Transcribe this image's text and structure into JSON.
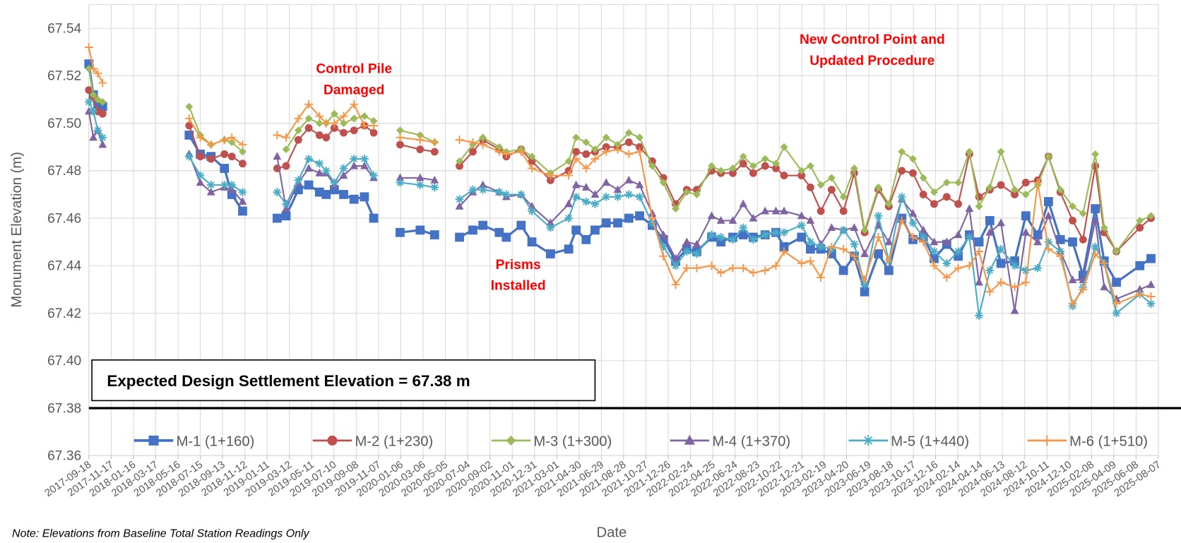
{
  "chart_data": {
    "type": "line",
    "y_label": "Monument Elevation (m)",
    "x_label": "Date",
    "note": "Note: Elevations from Baseline Total Station Readings Only",
    "reference_line": 67.38,
    "reference_label": "Expected Design Settlement Elevation = 67.38 m",
    "annotations": [
      [
        "Control Pile",
        "Damaged"
      ],
      [
        "Prisms",
        "Installed"
      ],
      [
        "New Control Point and",
        "Updated Procedure"
      ]
    ],
    "grid": true,
    "legend": "bottom",
    "ylim": [
      67.36,
      67.55
    ],
    "yticks": [
      67.36,
      67.38,
      {
        "value": 67.4,
        "label": "67.40"
      },
      67.42,
      67.44,
      67.46,
      67.48,
      {
        "value": 67.5,
        "label": "67.50"
      },
      67.52,
      67.54
    ],
    "xlim": [
      "2017-09-18",
      "2025-08-07"
    ],
    "xticks": [
      "2017-09-18",
      "2017-11-17",
      "2018-01-16",
      "2018-03-17",
      "2018-05-16",
      "2018-07-15",
      "2018-09-13",
      "2018-11-12",
      "2019-01-11",
      "2019-03-12",
      "2019-05-11",
      "2019-07-10",
      "2019-09-08",
      "2019-11-07",
      "2020-01-06",
      "2020-03-06",
      "2020-05-05",
      "2020-07-04",
      "2020-09-02",
      "2020-11-01",
      "2020-12-31",
      "2021-03-01",
      "2021-04-30",
      "2021-06-29",
      "2021-08-28",
      "2021-10-27",
      "2021-12-26",
      "2022-02-24",
      "2022-04-25",
      "2022-06-24",
      "2022-08-23",
      "2022-10-22",
      "2022-12-21",
      "2023-02-19",
      "2023-04-20",
      "2023-06-19",
      "2023-08-18",
      "2023-10-17",
      "2023-12-16",
      "2024-02-14",
      "2024-04-14",
      "2024-06-13",
      "2024-08-12",
      "2024-10-11",
      "2024-12-10",
      "2025-02-08",
      "2025-04-09",
      "2025-06-08",
      "2025-08-07"
    ],
    "x": [
      "2017-09-18",
      "2017-09-30",
      "2017-10-12",
      "2017-10-25",
      "2018-06-15",
      "2018-07-15",
      "2018-08-13",
      "2018-09-18",
      "2018-10-08",
      "2018-11-06",
      "2019-02-07",
      "2019-03-03",
      "2019-04-05",
      "2019-05-03",
      "2019-06-01",
      "2019-06-19",
      "2019-07-11",
      "2019-08-05",
      "2019-09-02",
      "2019-09-30",
      "2019-10-25",
      "2020-01-04",
      "2020-02-27",
      "2020-04-06",
      "2020-06-12",
      "2020-07-18",
      "2020-08-14",
      "2020-09-27",
      "2020-10-16",
      "2020-11-25",
      "2020-12-24",
      "2021-02-12",
      "2021-04-02",
      "2021-04-22",
      "2021-05-19",
      "2021-06-12",
      "2021-07-12",
      "2021-08-12",
      "2021-09-11",
      "2021-10-10",
      "2021-11-13",
      "2021-12-13",
      "2022-01-15",
      "2022-02-14",
      "2022-03-13",
      "2022-04-22",
      "2022-05-17",
      "2022-06-18",
      "2022-07-16",
      "2022-08-12",
      "2022-09-13",
      "2022-10-12",
      "2022-11-03",
      "2022-12-20",
      "2023-01-13",
      "2023-02-10",
      "2023-03-11",
      "2023-04-12",
      "2023-05-11",
      "2023-06-08",
      "2023-07-15",
      "2023-08-12",
      "2023-09-16",
      "2023-10-16",
      "2023-11-13",
      "2023-12-12",
      "2024-01-15",
      "2024-02-15",
      "2024-03-16",
      "2024-04-11",
      "2024-05-10",
      "2024-06-09",
      "2024-07-16",
      "2024-08-15",
      "2024-09-16",
      "2024-10-15",
      "2024-11-16",
      "2024-12-19",
      "2025-01-16",
      "2025-02-18",
      "2025-03-14",
      "2025-04-16",
      "2025-06-18",
      "2025-07-18"
    ],
    "series": [
      {
        "name": "M-1 (1+160)",
        "color": "#4472c4",
        "marker": "square",
        "values": [
          67.525,
          67.512,
          67.508,
          67.507,
          67.495,
          67.487,
          67.486,
          67.481,
          67.47,
          67.463,
          67.46,
          67.461,
          67.472,
          67.474,
          67.471,
          67.47,
          67.472,
          67.47,
          67.468,
          67.469,
          67.46,
          67.454,
          67.455,
          67.453,
          67.452,
          67.455,
          67.457,
          67.454,
          67.452,
          67.457,
          67.45,
          67.445,
          67.447,
          67.455,
          67.451,
          67.455,
          67.458,
          67.458,
          67.46,
          67.461,
          67.457,
          67.451,
          67.442,
          67.447,
          67.446,
          67.452,
          67.45,
          67.452,
          67.453,
          67.452,
          67.453,
          67.454,
          67.448,
          67.452,
          67.447,
          67.447,
          67.445,
          67.438,
          67.444,
          67.429,
          67.445,
          67.438,
          67.46,
          67.451,
          67.452,
          67.443,
          67.449,
          67.444,
          67.453,
          67.45,
          67.459,
          67.441,
          67.442,
          67.461,
          67.453,
          67.467,
          67.451,
          67.45,
          67.436,
          67.464,
          67.442,
          67.433,
          67.44,
          67.443
        ]
      },
      {
        "name": "M-2 (1+230)",
        "color": "#c0504d",
        "marker": "circle",
        "values": [
          67.514,
          67.511,
          67.505,
          67.504,
          67.499,
          67.486,
          67.485,
          67.487,
          67.486,
          67.483,
          67.481,
          67.482,
          67.493,
          67.498,
          67.495,
          67.494,
          67.498,
          67.496,
          67.497,
          67.499,
          67.496,
          67.491,
          67.489,
          67.488,
          67.482,
          67.488,
          67.493,
          67.489,
          67.486,
          67.489,
          67.484,
          67.476,
          67.48,
          67.488,
          67.487,
          67.488,
          67.49,
          67.49,
          67.492,
          67.49,
          67.484,
          67.477,
          67.466,
          67.472,
          67.472,
          67.48,
          67.479,
          67.479,
          67.483,
          67.479,
          67.482,
          67.481,
          67.478,
          67.478,
          67.473,
          67.463,
          67.472,
          67.463,
          67.479,
          67.454,
          67.472,
          67.465,
          67.48,
          67.479,
          67.47,
          67.466,
          67.469,
          67.466,
          67.487,
          67.469,
          67.472,
          67.474,
          67.47,
          67.475,
          67.476,
          67.486,
          67.471,
          67.459,
          67.451,
          67.482,
          67.454,
          67.446,
          67.456,
          67.46
        ]
      },
      {
        "name": "M-3 (1+300)",
        "color": "#9bbb59",
        "marker": "diamond",
        "values": [
          67.523,
          67.512,
          67.51,
          67.509,
          67.507,
          67.495,
          67.491,
          67.493,
          67.492,
          67.488,
          null,
          67.489,
          67.497,
          67.502,
          67.5,
          67.5,
          67.504,
          67.5,
          67.502,
          67.503,
          67.501,
          67.497,
          67.495,
          67.492,
          67.484,
          67.491,
          67.494,
          67.49,
          67.488,
          67.489,
          67.486,
          67.479,
          67.484,
          67.494,
          67.492,
          67.489,
          67.494,
          67.491,
          67.496,
          67.494,
          67.482,
          67.475,
          67.464,
          67.471,
          67.47,
          67.482,
          67.48,
          67.481,
          67.486,
          67.482,
          67.485,
          67.483,
          67.49,
          67.48,
          67.482,
          67.474,
          67.477,
          67.469,
          67.481,
          67.455,
          67.473,
          67.466,
          67.488,
          67.485,
          67.477,
          67.471,
          67.475,
          67.475,
          67.488,
          67.465,
          67.473,
          67.488,
          67.472,
          67.47,
          67.474,
          67.486,
          67.472,
          67.465,
          67.462,
          67.487,
          67.456,
          67.446,
          67.459,
          67.461
        ]
      },
      {
        "name": "M-4 (1+370)",
        "color": "#8064a2",
        "marker": "triangle",
        "values": [
          67.505,
          67.494,
          67.497,
          67.491,
          67.487,
          67.475,
          67.471,
          67.473,
          67.472,
          67.467,
          67.486,
          67.464,
          67.475,
          67.481,
          67.479,
          67.479,
          67.474,
          67.478,
          67.482,
          67.482,
          67.477,
          67.477,
          67.477,
          67.476,
          67.465,
          67.471,
          67.474,
          67.471,
          67.469,
          67.47,
          67.465,
          67.458,
          67.466,
          67.474,
          67.473,
          67.47,
          67.475,
          67.472,
          67.476,
          67.474,
          67.462,
          67.453,
          67.443,
          67.45,
          67.449,
          67.461,
          67.459,
          67.459,
          67.466,
          67.46,
          67.463,
          67.463,
          67.463,
          67.461,
          67.459,
          67.449,
          67.456,
          67.455,
          67.456,
          67.445,
          67.457,
          67.45,
          67.468,
          67.462,
          67.455,
          67.45,
          67.45,
          67.453,
          67.464,
          67.433,
          67.454,
          67.458,
          67.421,
          67.454,
          67.45,
          67.461,
          67.446,
          67.434,
          67.434,
          67.459,
          67.431,
          67.426,
          67.43,
          67.432
        ]
      },
      {
        "name": "M-5 (1+440)",
        "color": "#4bacc6",
        "marker": "asterisk",
        "values": [
          67.509,
          67.505,
          67.497,
          67.494,
          67.486,
          67.478,
          67.474,
          67.474,
          67.474,
          67.471,
          67.471,
          67.466,
          67.476,
          67.485,
          67.483,
          67.48,
          67.475,
          67.481,
          67.485,
          67.485,
          67.478,
          67.475,
          67.474,
          67.473,
          67.468,
          67.472,
          67.472,
          67.471,
          67.47,
          67.47,
          67.463,
          67.456,
          67.46,
          67.469,
          67.467,
          67.466,
          67.469,
          67.469,
          67.47,
          67.469,
          67.458,
          67.448,
          67.44,
          67.446,
          67.445,
          67.453,
          67.452,
          67.451,
          67.456,
          67.451,
          67.453,
          67.454,
          67.454,
          67.457,
          67.45,
          67.448,
          67.447,
          67.455,
          67.449,
          67.432,
          67.461,
          67.442,
          67.469,
          67.458,
          67.452,
          67.446,
          67.441,
          67.446,
          67.452,
          67.419,
          67.438,
          67.447,
          67.44,
          67.438,
          67.439,
          67.45,
          67.446,
          67.423,
          67.431,
          67.448,
          67.441,
          67.42,
          67.428,
          67.424
        ]
      },
      {
        "name": "M-6 (1+510)",
        "color": "#f79646",
        "marker": "plus",
        "values": [
          67.532,
          67.523,
          67.521,
          67.517,
          67.502,
          67.494,
          67.491,
          67.493,
          67.494,
          67.491,
          67.495,
          67.494,
          67.502,
          67.508,
          67.503,
          67.5,
          67.5,
          67.503,
          67.508,
          67.499,
          67.499,
          67.494,
          67.493,
          67.492,
          67.493,
          67.492,
          67.491,
          67.488,
          67.487,
          67.488,
          67.481,
          67.478,
          67.478,
          67.485,
          67.481,
          67.485,
          67.488,
          67.489,
          67.487,
          67.488,
          67.46,
          67.444,
          67.432,
          67.439,
          67.439,
          67.44,
          67.437,
          67.439,
          67.439,
          67.437,
          67.438,
          67.44,
          67.446,
          67.441,
          67.442,
          67.435,
          67.448,
          67.447,
          67.444,
          67.434,
          67.452,
          67.442,
          67.459,
          67.452,
          67.45,
          67.44,
          67.435,
          67.439,
          67.44,
          67.446,
          67.429,
          67.433,
          67.431,
          67.433,
          67.475,
          67.447,
          67.444,
          67.424,
          67.43,
          67.445,
          67.441,
          67.424,
          67.428,
          67.427
        ]
      }
    ]
  }
}
